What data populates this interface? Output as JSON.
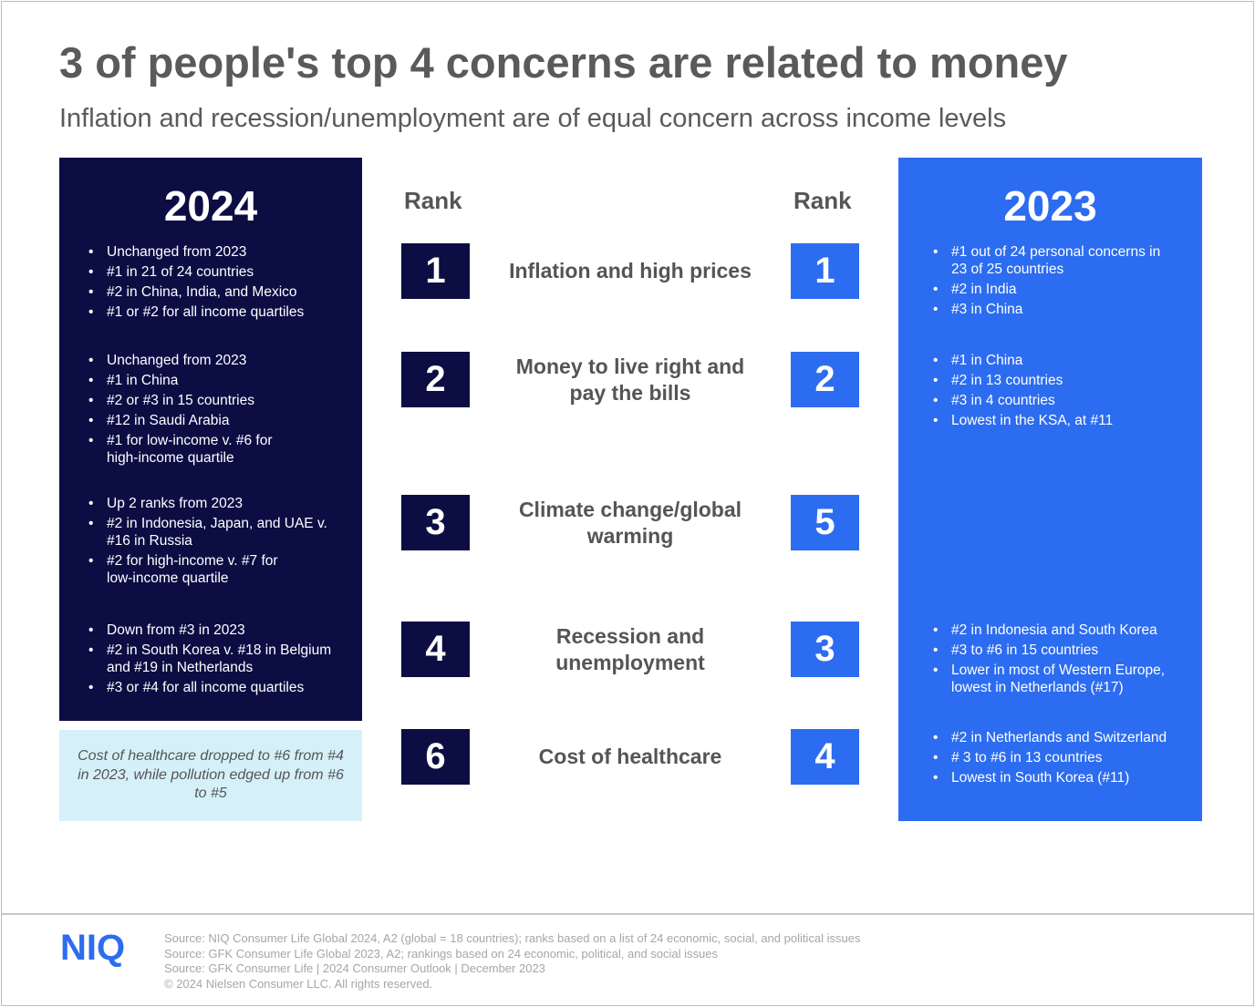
{
  "title": "3 of people's top 4 concerns are related to money",
  "subtitle": "Inflation and recession/unemployment are of equal concern across income levels",
  "left_panel": {
    "year": "2024",
    "groups": [
      [
        "Unchanged from 2023",
        "#1 in 21 of 24 countries",
        "#2 in China, India, and Mexico",
        "#1 or #2 for all income quartiles"
      ],
      [
        "Unchanged from 2023",
        "#1 in China",
        "#2 or #3 in 15 countries",
        "#12 in Saudi Arabia",
        "#1 for low-income v. #6 for high-income quartile"
      ],
      [
        "Up 2 ranks from 2023",
        "#2 in Indonesia, Japan, and UAE v. #16 in Russia",
        "#2 for high-income v. #7 for low-income quartile"
      ],
      [
        "Down from #3 in 2023",
        "#2 in South Korea v. #18 in Belgium and #19 in Netherlands",
        "#3 or #4 for all income quartiles"
      ]
    ]
  },
  "note": "Cost of healthcare dropped to #6 from #4 in 2023, while pollution edged up from #6 to #5",
  "rank_header_left": "Rank",
  "rank_header_right": "Rank",
  "concerns": [
    {
      "rank_2024": "1",
      "label": "Inflation and high prices",
      "rank_2023": "1"
    },
    {
      "rank_2024": "2",
      "label": "Money to live right and pay the bills",
      "rank_2023": "2"
    },
    {
      "rank_2024": "3",
      "label": "Climate change/global warming",
      "rank_2023": "5"
    },
    {
      "rank_2024": "4",
      "label": "Recession and unemployment",
      "rank_2023": "3"
    },
    {
      "rank_2024": "6",
      "label": "Cost of healthcare",
      "rank_2023": "4"
    }
  ],
  "right_panel": {
    "year": "2023",
    "groups": [
      [
        "#1 out of 24 personal concerns in 23 of 25 countries",
        "#2 in India",
        "#3 in China"
      ],
      [
        "#1 in China",
        "#2 in 13 countries",
        "#3 in 4 countries",
        "Lowest in the KSA, at #11"
      ],
      [
        "#2 in Indonesia and South Korea",
        "#3 to #6 in 15 countries",
        "Lower in most of Western Europe, lowest in Netherlands (#17)"
      ],
      [
        "#2 in Netherlands and Switzerland",
        "# 3 to #6 in 13 countries",
        "Lowest in South Korea (#11)"
      ]
    ]
  },
  "footer": {
    "logo": "NIQ",
    "sources": [
      "Source: NIQ Consumer Life Global 2024, A2 (global = 18 countries); ranks based on a list of 24 economic, social, and political issues",
      "Source: GFK Consumer Life Global 2023, A2; rankings based on 24 economic, political, and social issues",
      "Source: GFK Consumer Life | 2024 Consumer Outlook | December 2023",
      "© 2024 Nielsen Consumer LLC. All rights reserved."
    ]
  },
  "colors": {
    "navy": "#0b0d43",
    "blue": "#2c6cf0",
    "light_blue": "#d5f0f9",
    "text_gray": "#555555"
  }
}
